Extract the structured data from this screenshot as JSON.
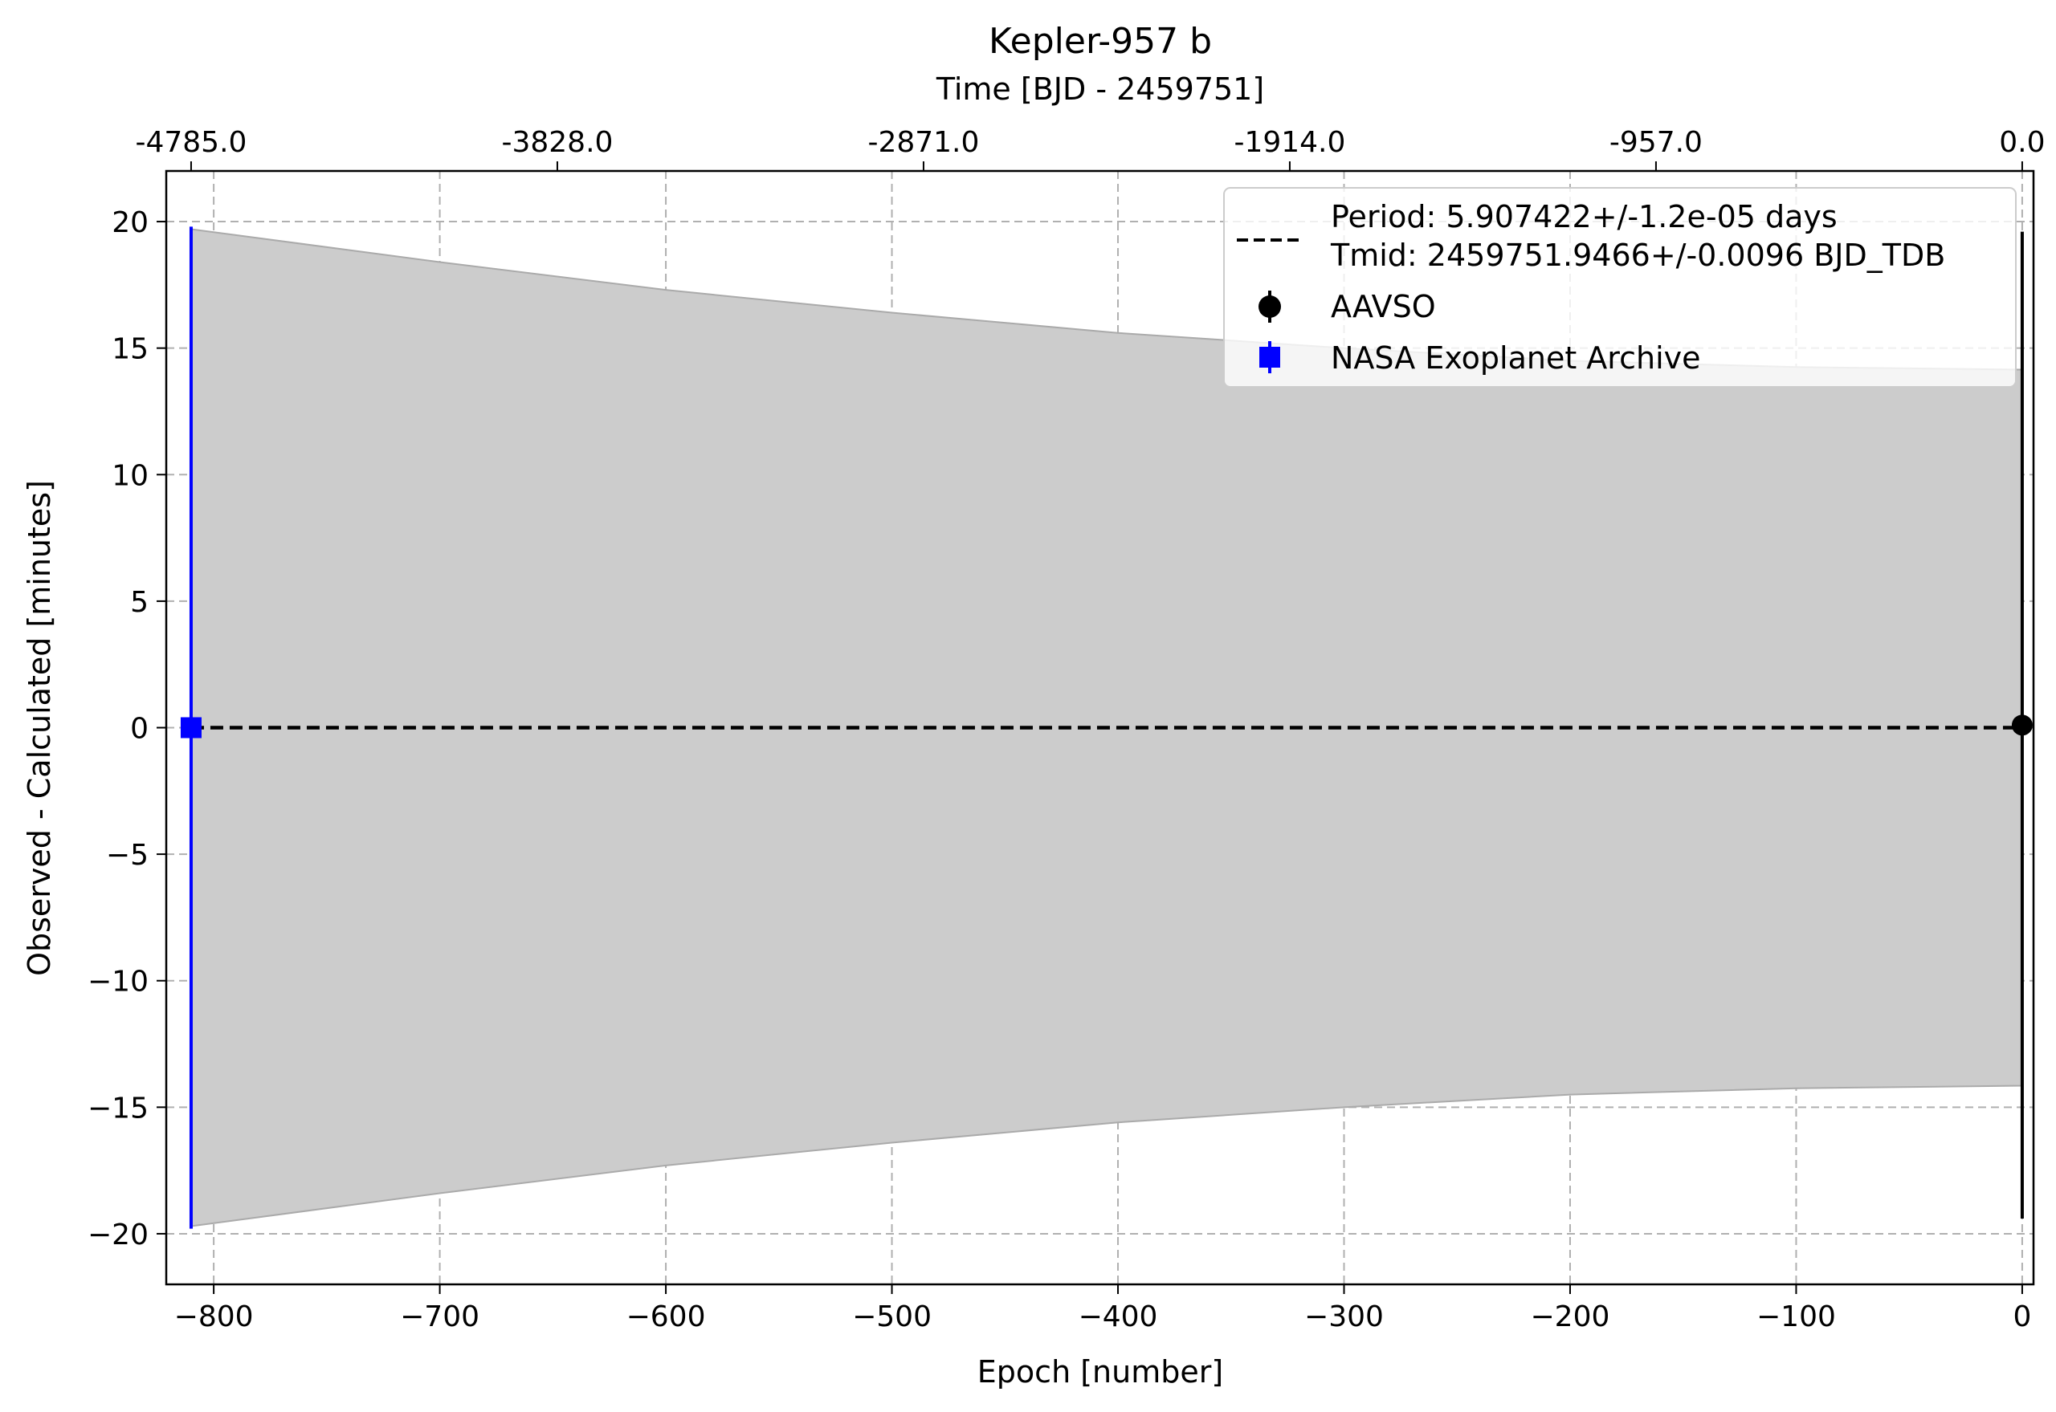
{
  "chart_data": {
    "type": "scatter",
    "title": "Kepler-957 b",
    "xlabel": "Epoch [number]",
    "ylabel": "Observed - Calculated [minutes]",
    "top_xlabel": "Time [BJD - 2459751]",
    "xlim": [
      -821,
      5
    ],
    "ylim": [
      -22,
      22
    ],
    "x_ticks": [
      -800,
      -700,
      -600,
      -500,
      -400,
      -300,
      -200,
      -100,
      0
    ],
    "x_tick_labels": [
      "−800",
      "−700",
      "−600",
      "−500",
      "−400",
      "−300",
      "−200",
      "−100",
      "0"
    ],
    "y_ticks": [
      -20,
      -15,
      -10,
      -5,
      0,
      5,
      10,
      15,
      20
    ],
    "y_tick_labels": [
      "−20",
      "−15",
      "−10",
      "−5",
      "0",
      "5",
      "10",
      "15",
      "20"
    ],
    "top_ticks_epoch": [
      -810,
      -648,
      -486,
      -324,
      -162,
      0
    ],
    "top_tick_labels": [
      "-4785.0",
      "-3828.0",
      "-2871.0",
      "-1914.0",
      "-957.0",
      "0.0"
    ],
    "grid": true,
    "legend_position": "top-right",
    "fit": {
      "label_line1": "Period: 5.907422+/-1.2e-05 days",
      "label_line2": "Tmid: 2459751.9466+/-0.0096 BJD_TDB",
      "style": "dashed",
      "color": "#000000",
      "y": 0
    },
    "uncertainty_band": {
      "color": "#cccccc",
      "edge_color": "#aaaaaa",
      "x": [
        -810,
        -700,
        -600,
        -500,
        -400,
        -300,
        -200,
        -100,
        0
      ],
      "upper": [
        19.7,
        18.4,
        17.3,
        16.4,
        15.6,
        15.0,
        14.5,
        14.25,
        14.15
      ],
      "lower": [
        -19.7,
        -18.4,
        -17.3,
        -16.4,
        -15.6,
        -15.0,
        -14.5,
        -14.25,
        -14.15
      ]
    },
    "series": [
      {
        "name": "AAVSO",
        "color": "#000000",
        "marker": "circle",
        "x": [
          0
        ],
        "y": [
          0.1
        ],
        "yerr": [
          19.5
        ]
      },
      {
        "name": "NASA Exoplanet Archive",
        "color": "#0000ff",
        "marker": "square",
        "x": [
          -810
        ],
        "y": [
          0
        ],
        "yerr": [
          19.8
        ]
      }
    ]
  }
}
